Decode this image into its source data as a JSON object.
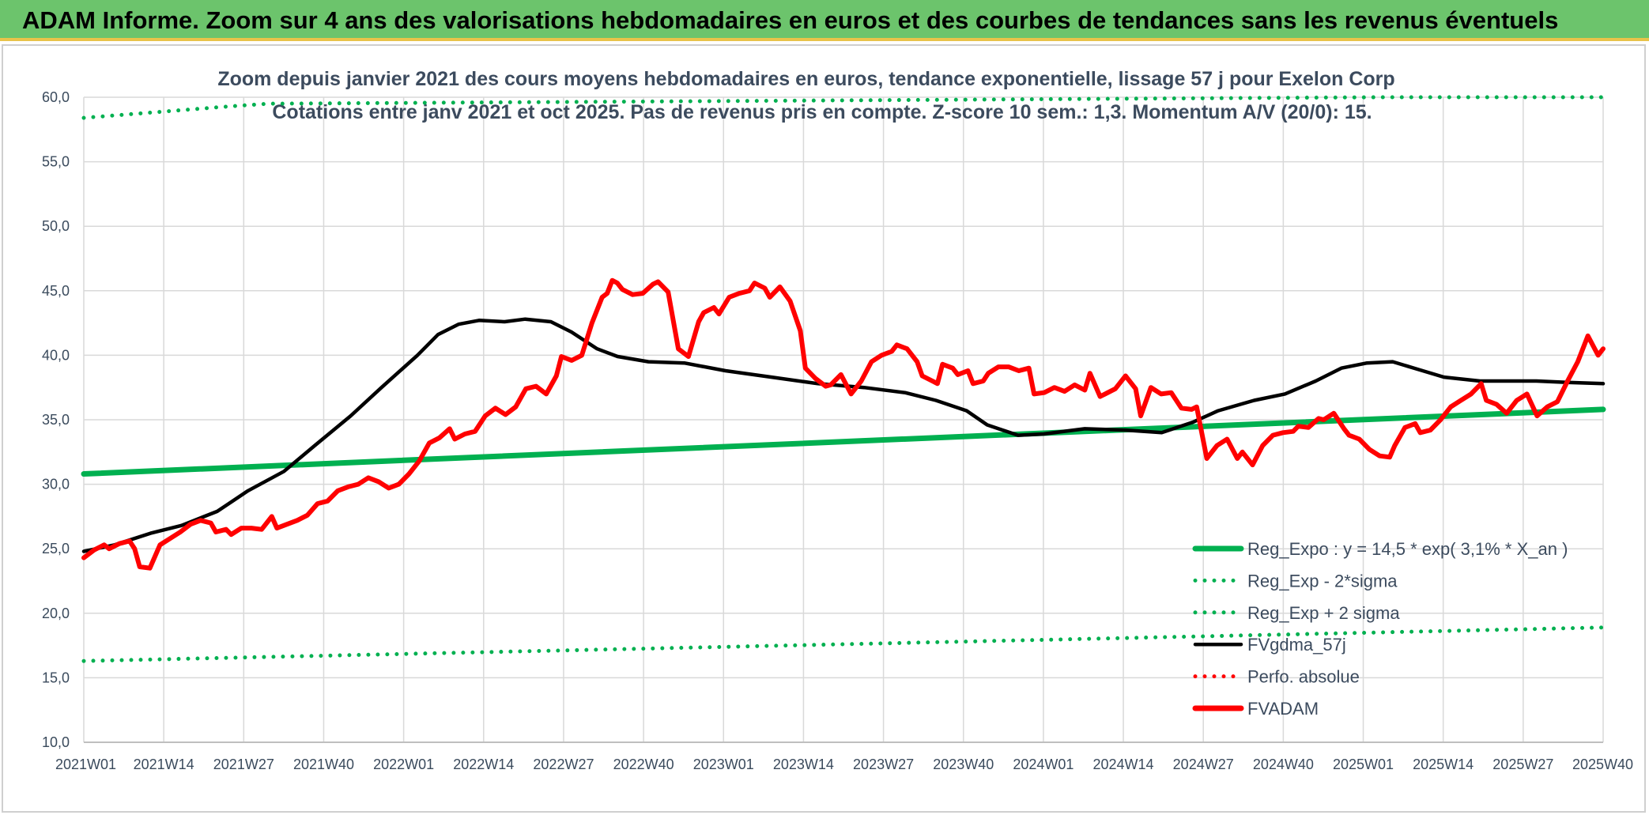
{
  "banner": {
    "title": "ADAM Informe. Zoom sur 4 ans des valorisations hebdomadaires en euros et des courbes de tendances sans les revenus éventuels"
  },
  "colors": {
    "banner_bg": "#6cc46c",
    "green": "#00b050",
    "black": "#000000",
    "red": "#ff0000",
    "grid": "#d9d9d9"
  },
  "chart_data": {
    "type": "line",
    "title": "Zoom depuis janvier 2021 des cours moyens hebdomadaires en euros, tendance exponentielle, lissage 57 j pour Exelon Corp",
    "subtitle": "Cotations entre janv 2021 et oct 2025. Pas de revenus pris en compte. Z-score 10 sem.: 1,3. Momentum A/V (20/0): 15.",
    "xlabel": "",
    "ylabel": "",
    "ylim": [
      10,
      60
    ],
    "y_ticks": [
      "10,0",
      "15,0",
      "20,0",
      "25,0",
      "30,0",
      "35,0",
      "40,0",
      "45,0",
      "50,0",
      "55,0",
      "60,0"
    ],
    "x_ticks": [
      "2021W01",
      "2021W14",
      "2021W27",
      "2021W40",
      "2022W01",
      "2022W14",
      "2022W27",
      "2022W40",
      "2023W01",
      "2023W14",
      "2023W27",
      "2023W40",
      "2024W01",
      "2024W14",
      "2024W27",
      "2024W40",
      "2025W01",
      "2025W14",
      "2025W27",
      "2025W40"
    ],
    "grid": true,
    "legend_position": "bottom-right",
    "series": [
      {
        "name": "Reg_Expo : y = 14,5 * exp( 3,1% *  X_an )",
        "style": "solid-thick",
        "color": "#00b050",
        "values": [
          [
            0,
            30.8
          ],
          [
            247,
            35.8
          ]
        ]
      },
      {
        "name": "Reg_Exp - 2*sigma",
        "style": "dotted",
        "color": "#00b050",
        "values": [
          [
            0,
            16.3
          ],
          [
            247,
            18.9
          ]
        ]
      },
      {
        "name": "Reg_Exp + 2 sigma",
        "style": "dotted",
        "color": "#00b050",
        "values": [
          [
            0,
            58.4
          ],
          [
            8,
            58.7
          ],
          [
            16,
            59.0
          ],
          [
            24,
            59.3
          ],
          [
            30,
            59.5
          ],
          [
            211,
            60.0
          ],
          [
            247,
            60.0
          ]
        ]
      },
      {
        "name": "FVgdma_57j",
        "style": "solid",
        "color": "#000000",
        "values": [
          [
            0,
            24.8
          ],
          [
            6,
            25.3
          ],
          [
            13,
            26.2
          ],
          [
            19,
            26.8
          ],
          [
            26,
            27.9
          ],
          [
            32,
            29.5
          ],
          [
            39,
            31.0
          ],
          [
            45,
            33.0
          ],
          [
            52,
            35.3
          ],
          [
            58,
            37.5
          ],
          [
            65,
            40.0
          ],
          [
            69,
            41.6
          ],
          [
            73,
            42.4
          ],
          [
            77,
            42.7
          ],
          [
            82,
            42.6
          ],
          [
            86,
            42.8
          ],
          [
            91,
            42.6
          ],
          [
            95,
            41.8
          ],
          [
            100,
            40.5
          ],
          [
            104,
            39.9
          ],
          [
            110,
            39.5
          ],
          [
            117,
            39.4
          ],
          [
            125,
            38.8
          ],
          [
            134,
            38.3
          ],
          [
            143,
            37.8
          ],
          [
            152,
            37.5
          ],
          [
            160,
            37.1
          ],
          [
            166,
            36.5
          ],
          [
            172,
            35.7
          ],
          [
            176,
            34.6
          ],
          [
            182,
            33.8
          ],
          [
            187,
            33.9
          ],
          [
            195,
            34.3
          ],
          [
            203,
            34.2
          ],
          [
            210,
            34.0
          ],
          [
            216,
            34.8
          ],
          [
            221,
            35.7
          ],
          [
            228,
            36.5
          ],
          [
            234,
            37.0
          ],
          [
            240,
            38.0
          ],
          [
            245,
            39.0
          ],
          [
            250,
            39.4
          ],
          [
            255,
            39.5
          ],
          [
            260,
            38.9
          ],
          [
            265,
            38.3
          ],
          [
            272,
            38.0
          ],
          [
            279,
            38.0
          ],
          [
            283,
            38.0
          ],
          [
            289,
            37.9
          ],
          [
            296,
            37.8
          ]
        ]
      },
      {
        "name": "Perfo. absolue",
        "style": "dotted",
        "color": "#ff0000",
        "values": []
      },
      {
        "name": "FVADAM",
        "style": "solid-thick",
        "color": "#ff0000",
        "values": [
          [
            0,
            24.3
          ],
          [
            2,
            24.9
          ],
          [
            4,
            25.3
          ],
          [
            5,
            25.0
          ],
          [
            7,
            25.4
          ],
          [
            9,
            25.6
          ],
          [
            10,
            25.0
          ],
          [
            11,
            23.6
          ],
          [
            13,
            23.5
          ],
          [
            15,
            25.3
          ],
          [
            17,
            25.8
          ],
          [
            19,
            26.3
          ],
          [
            21,
            26.9
          ],
          [
            23,
            27.2
          ],
          [
            25,
            27.0
          ],
          [
            26,
            26.3
          ],
          [
            28,
            26.5
          ],
          [
            29,
            26.1
          ],
          [
            31,
            26.6
          ],
          [
            33,
            26.6
          ],
          [
            35,
            26.5
          ],
          [
            37,
            27.5
          ],
          [
            38,
            26.6
          ],
          [
            40,
            26.9
          ],
          [
            42,
            27.2
          ],
          [
            44,
            27.6
          ],
          [
            46,
            28.5
          ],
          [
            48,
            28.7
          ],
          [
            50,
            29.5
          ],
          [
            52,
            29.8
          ],
          [
            54,
            30.0
          ],
          [
            56,
            30.5
          ],
          [
            58,
            30.2
          ],
          [
            60,
            29.7
          ],
          [
            62,
            30.0
          ],
          [
            64,
            30.8
          ],
          [
            66,
            31.8
          ],
          [
            68,
            33.2
          ],
          [
            70,
            33.6
          ],
          [
            72,
            34.3
          ],
          [
            73,
            33.5
          ],
          [
            75,
            33.9
          ],
          [
            77,
            34.1
          ],
          [
            79,
            35.3
          ],
          [
            81,
            35.9
          ],
          [
            83,
            35.4
          ],
          [
            85,
            36.0
          ],
          [
            87,
            37.4
          ],
          [
            89,
            37.6
          ],
          [
            91,
            37.0
          ],
          [
            93,
            38.4
          ],
          [
            94,
            39.9
          ],
          [
            96,
            39.6
          ],
          [
            98,
            40.0
          ],
          [
            100,
            42.5
          ],
          [
            102,
            44.5
          ],
          [
            103,
            44.8
          ],
          [
            104,
            45.8
          ],
          [
            105,
            45.6
          ],
          [
            106,
            45.1
          ],
          [
            108,
            44.7
          ],
          [
            110,
            44.8
          ],
          [
            112,
            45.5
          ],
          [
            113,
            45.7
          ],
          [
            115,
            44.9
          ],
          [
            117,
            40.5
          ],
          [
            119,
            39.9
          ],
          [
            121,
            42.6
          ],
          [
            122,
            43.3
          ],
          [
            124,
            43.7
          ],
          [
            125,
            43.2
          ],
          [
            127,
            44.5
          ],
          [
            129,
            44.8
          ],
          [
            131,
            45.0
          ],
          [
            132,
            45.6
          ],
          [
            134,
            45.2
          ],
          [
            135,
            44.5
          ],
          [
            137,
            45.3
          ],
          [
            139,
            44.2
          ],
          [
            141,
            41.9
          ],
          [
            142,
            39.0
          ],
          [
            144,
            38.2
          ],
          [
            146,
            37.6
          ],
          [
            147,
            37.7
          ],
          [
            149,
            38.5
          ],
          [
            151,
            37.0
          ],
          [
            153,
            38.0
          ],
          [
            155,
            39.5
          ],
          [
            157,
            40.0
          ],
          [
            159,
            40.3
          ],
          [
            160,
            40.8
          ],
          [
            162,
            40.5
          ],
          [
            164,
            39.5
          ],
          [
            165,
            38.4
          ],
          [
            167,
            38.0
          ],
          [
            168,
            37.8
          ],
          [
            169,
            39.3
          ],
          [
            171,
            39.0
          ],
          [
            172,
            38.5
          ],
          [
            174,
            38.8
          ],
          [
            175,
            37.8
          ],
          [
            177,
            38.0
          ],
          [
            178,
            38.6
          ],
          [
            180,
            39.1
          ],
          [
            182,
            39.1
          ],
          [
            184,
            38.8
          ],
          [
            186,
            39.0
          ],
          [
            187,
            37.0
          ],
          [
            189,
            37.1
          ],
          [
            191,
            37.5
          ],
          [
            193,
            37.2
          ],
          [
            195,
            37.7
          ],
          [
            197,
            37.3
          ],
          [
            198,
            38.6
          ],
          [
            200,
            36.8
          ],
          [
            201,
            37.0
          ],
          [
            203,
            37.4
          ],
          [
            205,
            38.4
          ],
          [
            207,
            37.4
          ],
          [
            208,
            35.3
          ],
          [
            210,
            37.5
          ],
          [
            212,
            37.0
          ],
          [
            214,
            37.1
          ],
          [
            216,
            35.9
          ],
          [
            218,
            35.8
          ],
          [
            219,
            36.0
          ],
          [
            221,
            32.0
          ],
          [
            223,
            33.0
          ],
          [
            225,
            33.5
          ],
          [
            227,
            32.0
          ],
          [
            228,
            32.5
          ],
          [
            230,
            31.5
          ],
          [
            232,
            33.0
          ],
          [
            234,
            33.8
          ],
          [
            236,
            34.0
          ],
          [
            238,
            34.1
          ],
          [
            239,
            34.5
          ],
          [
            241,
            34.4
          ],
          [
            243,
            35.1
          ],
          [
            244,
            35.0
          ],
          [
            246,
            35.5
          ],
          [
            248,
            34.3
          ],
          [
            249,
            33.8
          ],
          [
            251,
            33.5
          ],
          [
            253,
            32.7
          ],
          [
            255,
            32.2
          ],
          [
            257,
            32.1
          ],
          [
            258,
            33.0
          ],
          [
            260,
            34.4
          ],
          [
            262,
            34.7
          ],
          [
            263,
            34.0
          ],
          [
            265,
            34.2
          ],
          [
            267,
            35.0
          ],
          [
            269,
            36.0
          ],
          [
            271,
            36.5
          ],
          [
            273,
            37.0
          ],
          [
            275,
            37.8
          ],
          [
            276,
            36.5
          ],
          [
            278,
            36.2
          ],
          [
            280,
            35.5
          ],
          [
            282,
            36.5
          ],
          [
            284,
            37.0
          ],
          [
            286,
            35.3
          ],
          [
            288,
            36.0
          ],
          [
            290,
            36.4
          ],
          [
            292,
            38.0
          ],
          [
            294,
            39.5
          ],
          [
            296,
            41.5
          ],
          [
            298,
            40.0
          ],
          [
            299,
            40.5
          ]
        ]
      }
    ]
  }
}
